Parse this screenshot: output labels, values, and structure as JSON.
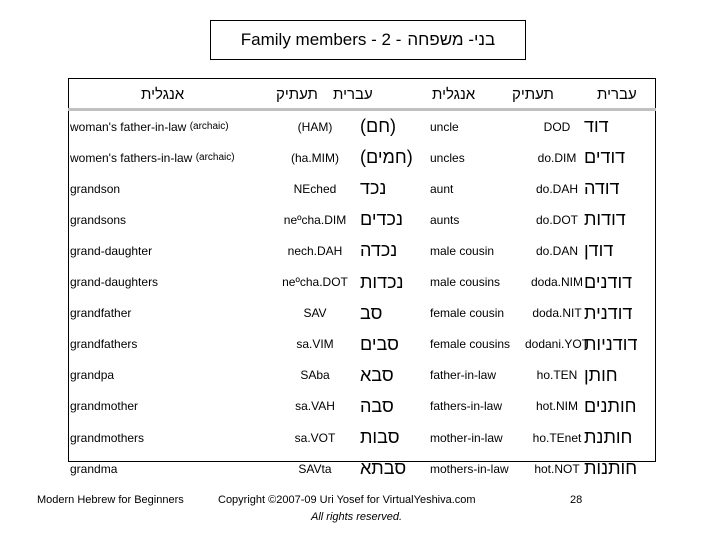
{
  "title": {
    "english": "Family members - 2 -",
    "hebrew": "בני- משפחה"
  },
  "headers": {
    "left_english": "אנגלית",
    "left_translit": "תעתיק",
    "left_hebrew": "עברית",
    "right_english": "אנגלית",
    "right_translit": "תעתיק",
    "right_hebrew": "עברית"
  },
  "left_rows": [
    {
      "english": "woman's father-in-law",
      "note": "(archaic)",
      "translit": "(HAM)",
      "hebrew": "(חם)"
    },
    {
      "english": "women's fathers-in-law",
      "note": "(archaic)",
      "translit": "(ha.MIM)",
      "hebrew": "(חמים)"
    },
    {
      "english": "grandson",
      "note": "",
      "translit": "NEched",
      "hebrew": "נכד"
    },
    {
      "english": "grandsons",
      "note": "",
      "translit": "neºcha.DIM",
      "hebrew": "נכדים"
    },
    {
      "english": "grand-daughter",
      "note": "",
      "translit": "nech.DAH",
      "hebrew": "נכדה"
    },
    {
      "english": "grand-daughters",
      "note": "",
      "translit": "neºcha.DOT",
      "hebrew": "נכדות"
    },
    {
      "english": "grandfather",
      "note": "",
      "translit": "SAV",
      "hebrew": "סב"
    },
    {
      "english": "grandfathers",
      "note": "",
      "translit": "sa.VIM",
      "hebrew": "סבים"
    },
    {
      "english": "grandpa",
      "note": "",
      "translit": "SAba",
      "hebrew": "סבא"
    },
    {
      "english": "grandmother",
      "note": "",
      "translit": "sa.VAH",
      "hebrew": "סבה"
    },
    {
      "english": "grandmothers",
      "note": "",
      "translit": "sa.VOT",
      "hebrew": "סבות"
    },
    {
      "english": "grandma",
      "note": "",
      "translit": "SAVta",
      "hebrew": "סבתא"
    }
  ],
  "right_rows": [
    {
      "english": "uncle",
      "translit": "DOD",
      "hebrew": "דוד"
    },
    {
      "english": "uncles",
      "translit": "do.DIM",
      "hebrew": "דודים"
    },
    {
      "english": "aunt",
      "translit": "do.DAH",
      "hebrew": "דודה"
    },
    {
      "english": "aunts",
      "translit": "do.DOT",
      "hebrew": "דודות"
    },
    {
      "english": "male cousin",
      "translit": "do.DAN",
      "hebrew": "דודן"
    },
    {
      "english": "male cousins",
      "translit": "doda.NIM",
      "hebrew": "דודנים"
    },
    {
      "english": "female cousin",
      "translit": "doda.NIT",
      "hebrew": "דודנית"
    },
    {
      "english": "female cousins",
      "translit": "dodani.YOT",
      "hebrew": "דודניות"
    },
    {
      "english": "father-in-law",
      "translit": "ho.TEN",
      "hebrew": "חותן"
    },
    {
      "english": "fathers-in-law",
      "translit": "hot.NIM",
      "hebrew": "חותנים"
    },
    {
      "english": "mother-in-law",
      "translit": "ho.TEnet",
      "hebrew": "חותנת"
    },
    {
      "english": "mothers-in-law",
      "translit": "hot.NOT",
      "hebrew": "חותנות"
    }
  ],
  "footer": {
    "left": "Modern Hebrew for Beginners",
    "center_line1": "Copyright ©2007-09 Uri Yosef for VirtualYeshiva.com",
    "center_line2": "All rights reserved.",
    "page": "28"
  }
}
